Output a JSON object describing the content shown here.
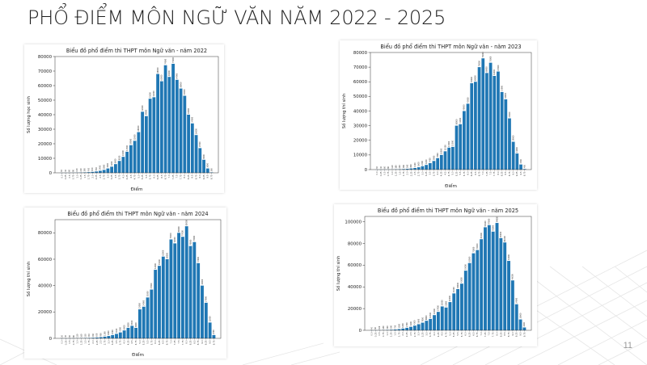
{
  "slide": {
    "title": "PHỔ ĐIỂM MÔN NGỮ VĂN NĂM 2022 - 2025",
    "page_number": "11"
  },
  "chart_data": [
    {
      "id": "2022",
      "type": "bar",
      "title": "Biểu đồ phổ điểm thi THPT môn Ngữ văn - năm 2022",
      "xlabel": "Điểm",
      "ylabel": "Số lượng học sinh",
      "ylim": [
        0,
        80000
      ],
      "yticks": [
        0,
        10000,
        20000,
        30000,
        40000,
        50000,
        60000,
        70000,
        80000
      ],
      "categories": [
        "0.0",
        "0.25",
        "0.5",
        "0.75",
        "1.0",
        "1.25",
        "1.5",
        "1.75",
        "2.0",
        "2.25",
        "2.5",
        "2.75",
        "3.0",
        "3.25",
        "3.5",
        "3.75",
        "4.0",
        "4.25",
        "4.5",
        "4.75",
        "5.0",
        "5.25",
        "5.5",
        "5.75",
        "6.0",
        "6.25",
        "6.5",
        "6.75",
        "7.0",
        "7.25",
        "7.5",
        "7.75",
        "8.0",
        "8.25",
        "8.5",
        "8.75",
        "9.0",
        "9.25",
        "9.5",
        "9.75"
      ],
      "values": [
        30,
        40,
        60,
        90,
        140,
        210,
        300,
        450,
        650,
        950,
        1400,
        2000,
        3000,
        4200,
        6000,
        8200,
        11000,
        14500,
        19000,
        22000,
        28000,
        42000,
        39000,
        51000,
        52000,
        68000,
        63000,
        74000,
        66000,
        75000,
        64000,
        58000,
        53000,
        40000,
        34000,
        26000,
        17000,
        9000,
        3000,
        300
      ],
      "grid": false,
      "legend": "none",
      "bar_color": "#1f77b4"
    },
    {
      "id": "2023",
      "type": "bar",
      "title": "Biểu đồ phổ điểm thi THPT môn Ngữ văn - năm 2023",
      "xlabel": "Điểm",
      "ylabel": "Số lượng thí sinh",
      "ylim": [
        0,
        80000
      ],
      "yticks": [
        0,
        10000,
        20000,
        30000,
        40000,
        50000,
        60000,
        70000,
        80000
      ],
      "categories": [
        "0.0",
        "0.25",
        "0.5",
        "0.75",
        "1.0",
        "1.25",
        "1.5",
        "1.75",
        "2.0",
        "2.25",
        "2.5",
        "2.75",
        "3.0",
        "3.25",
        "3.5",
        "3.75",
        "4.0",
        "4.25",
        "4.5",
        "4.75",
        "5.0",
        "5.25",
        "5.5",
        "5.75",
        "6.0",
        "6.25",
        "6.5",
        "6.75",
        "7.0",
        "7.25",
        "7.5",
        "7.75",
        "8.0",
        "8.25",
        "8.5",
        "8.75",
        "9.0",
        "9.25",
        "9.5",
        "9.75"
      ],
      "values": [
        30,
        40,
        60,
        80,
        120,
        180,
        260,
        380,
        560,
        800,
        1100,
        1600,
        2300,
        3200,
        4400,
        5900,
        7800,
        10000,
        12500,
        15000,
        15500,
        30000,
        31000,
        40000,
        45000,
        59000,
        60000,
        70000,
        76000,
        66000,
        73000,
        64000,
        67000,
        53000,
        48000,
        35000,
        19000,
        11000,
        3500,
        400
      ],
      "grid": false,
      "legend": "none",
      "bar_color": "#1f77b4"
    },
    {
      "id": "2024",
      "type": "bar",
      "title": "Biểu đồ phổ điểm thi THPT môn Ngữ văn - năm 2024",
      "xlabel": "Điểm",
      "ylabel": "Số lượng thí sinh",
      "ylim": [
        0,
        90000
      ],
      "yticks": [
        0,
        20000,
        40000,
        60000,
        80000
      ],
      "categories": [
        "0.0",
        "0.25",
        "0.5",
        "0.75",
        "1.0",
        "1.25",
        "1.5",
        "1.75",
        "2.0",
        "2.25",
        "2.5",
        "2.75",
        "3.0",
        "3.25",
        "3.5",
        "3.75",
        "4.0",
        "4.25",
        "4.5",
        "4.75",
        "5.0",
        "5.25",
        "5.5",
        "5.75",
        "6.0",
        "6.25",
        "6.5",
        "6.75",
        "7.0",
        "7.25",
        "7.5",
        "7.75",
        "8.0",
        "8.25",
        "8.5",
        "8.75",
        "9.0",
        "9.25",
        "9.5",
        "9.75"
      ],
      "values": [
        30,
        40,
        60,
        80,
        120,
        160,
        230,
        330,
        460,
        650,
        900,
        1300,
        1800,
        2500,
        3400,
        4500,
        6000,
        8000,
        9500,
        8000,
        22000,
        24000,
        31000,
        37000,
        52000,
        55000,
        62000,
        60000,
        75000,
        72000,
        80000,
        77000,
        85000,
        70000,
        73000,
        57000,
        40000,
        27000,
        12000,
        2500
      ],
      "grid": false,
      "legend": "none",
      "bar_color": "#1f77b4"
    },
    {
      "id": "2025",
      "type": "bar",
      "title": "Biểu đồ phổ điểm thi THPT môn Ngữ văn - năm 2025",
      "xlabel": "",
      "ylabel": "Số lượng thí sinh",
      "ylim": [
        0,
        105000
      ],
      "yticks": [
        0,
        20000,
        40000,
        60000,
        80000,
        100000
      ],
      "categories": [
        "0.0",
        "0.25",
        "0.5",
        "0.75",
        "1.0",
        "1.25",
        "1.5",
        "1.75",
        "2.0",
        "2.25",
        "2.5",
        "2.75",
        "3.0",
        "3.25",
        "3.5",
        "3.75",
        "4.0",
        "4.25",
        "4.5",
        "4.75",
        "5.0",
        "5.25",
        "5.5",
        "5.75",
        "6.0",
        "6.25",
        "6.5",
        "6.75",
        "7.0",
        "7.25",
        "7.5",
        "7.75",
        "8.0",
        "8.25",
        "8.5",
        "8.75",
        "9.0",
        "9.25",
        "9.5",
        "9.75"
      ],
      "values": [
        40,
        60,
        100,
        180,
        300,
        500,
        750,
        1100,
        1600,
        2300,
        3200,
        4300,
        5600,
        7000,
        8800,
        10500,
        14000,
        17000,
        22000,
        21000,
        26000,
        34000,
        38000,
        43000,
        55000,
        62000,
        71000,
        74000,
        84000,
        95000,
        97000,
        91000,
        99000,
        85000,
        81000,
        64000,
        46000,
        24000,
        10000,
        2600
      ],
      "grid": false,
      "legend": "none",
      "bar_color": "#1f77b4"
    }
  ]
}
